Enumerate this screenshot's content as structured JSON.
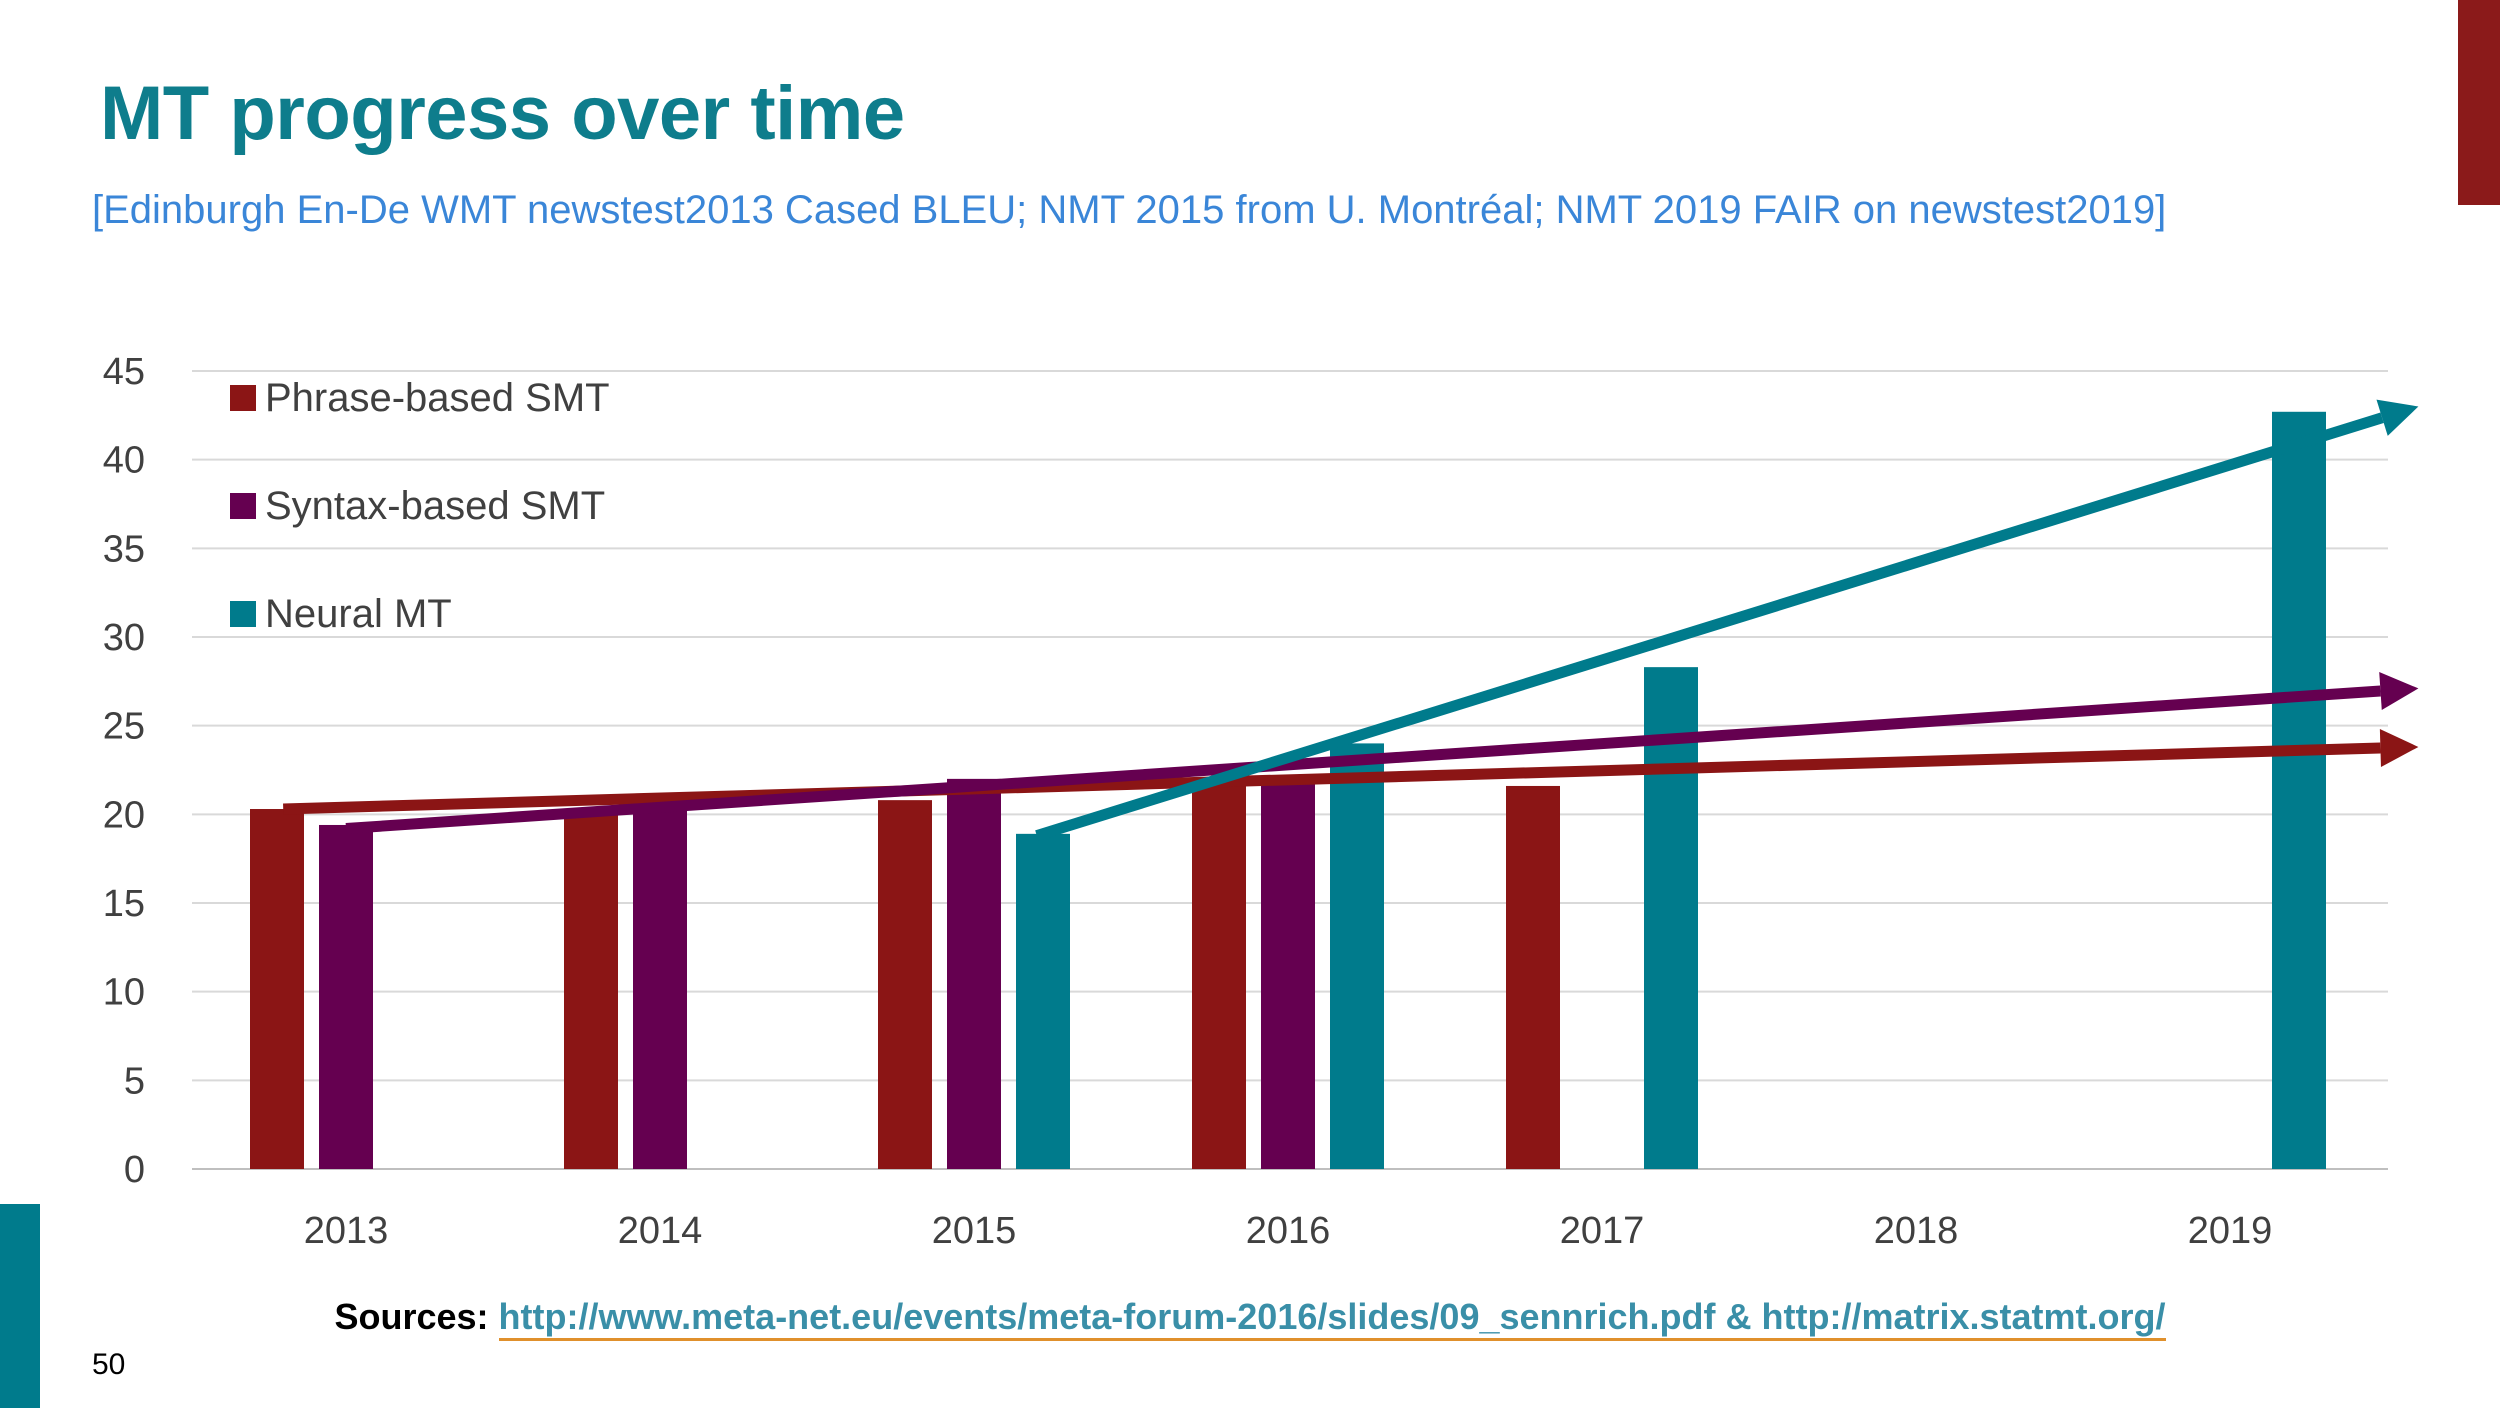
{
  "slide": {
    "title": "MT progress over time",
    "subtitle": "[Edinburgh En-De WMT newstest2013 Cased BLEU; NMT 2015 from U. Montréal; NMT 2019 FAIR on newstest2019]",
    "sources_label": "Sources:",
    "sources_link": "http://www.meta-net.eu/events/meta-forum-2016/slides/09_sennrich.pdf & http://matrix.statmt.org/",
    "page_number": "50",
    "accent_colors": {
      "top_bar": "#8b1a1a",
      "bottom_bar": "#007b8c"
    }
  },
  "chart_data": {
    "type": "bar",
    "categories": [
      "2013",
      "2014",
      "2015",
      "2016",
      "2017",
      "2018",
      "2019"
    ],
    "y_ticks": [
      "0",
      "5",
      "10",
      "15",
      "20",
      "25",
      "30",
      "35",
      "40",
      "45"
    ],
    "ylim": [
      0,
      45
    ],
    "grid": true,
    "legend_position": "top-left",
    "series": [
      {
        "name": "Phrase-based SMT",
        "color": "#8b1515",
        "values": [
          20.3,
          20.0,
          20.8,
          21.8,
          21.6,
          null,
          null
        ]
      },
      {
        "name": "Syntax-based SMT",
        "color": "#650050",
        "values": [
          19.4,
          20.6,
          22.0,
          22.0,
          null,
          null,
          null
        ]
      },
      {
        "name": "Neural MT",
        "color": "#007b8c",
        "values": [
          null,
          null,
          18.9,
          24.0,
          28.3,
          null,
          42.7
        ]
      }
    ],
    "trend_arrows": [
      {
        "series": "Phrase-based SMT",
        "color": "#8b1515",
        "from": {
          "x": 2012.8,
          "y": 20.3
        },
        "to": {
          "x": 2019.6,
          "y": 23.8
        }
      },
      {
        "series": "Syntax-based SMT",
        "color": "#650050",
        "from": {
          "x": 2013.0,
          "y": 19.2
        },
        "to": {
          "x": 2019.6,
          "y": 27.1
        }
      },
      {
        "series": "Neural MT",
        "color": "#007b8c",
        "from": {
          "x": 2015.2,
          "y": 18.8
        },
        "to": {
          "x": 2019.6,
          "y": 43.0
        }
      }
    ]
  }
}
